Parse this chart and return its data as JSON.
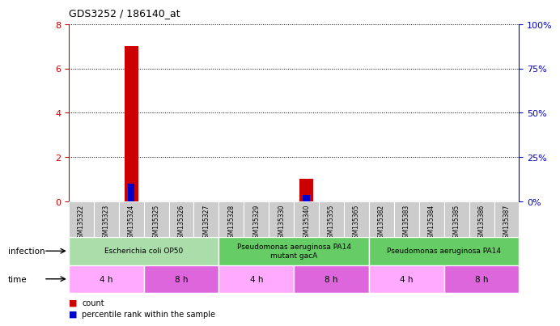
{
  "title": "GDS3252 / 186140_at",
  "samples": [
    "GSM135322",
    "GSM135323",
    "GSM135324",
    "GSM135325",
    "GSM135326",
    "GSM135327",
    "GSM135328",
    "GSM135329",
    "GSM135330",
    "GSM135340",
    "GSM135355",
    "GSM135365",
    "GSM135382",
    "GSM135383",
    "GSM135384",
    "GSM135385",
    "GSM135386",
    "GSM135387"
  ],
  "count_values": [
    0,
    0,
    7,
    0,
    0,
    0,
    0,
    0,
    0,
    1,
    0,
    0,
    0,
    0,
    0,
    0,
    0,
    0
  ],
  "percentile_values": [
    0,
    0,
    10,
    0,
    0,
    0,
    0,
    0,
    0,
    3.5,
    0,
    0,
    0,
    0,
    0,
    0,
    0,
    0
  ],
  "ylim_left": [
    0,
    8
  ],
  "ylim_right": [
    0,
    100
  ],
  "yticks_left": [
    0,
    2,
    4,
    6,
    8
  ],
  "yticks_right": [
    0,
    25,
    50,
    75,
    100
  ],
  "infection_groups": [
    {
      "label": "Escherichia coli OP50",
      "start": 0,
      "end": 6,
      "color": "#aaddaa"
    },
    {
      "label": "Pseudomonas aeruginosa PA14\nmutant gacA",
      "start": 6,
      "end": 12,
      "color": "#66cc66"
    },
    {
      "label": "Pseudomonas aeruginosa PA14",
      "start": 12,
      "end": 18,
      "color": "#66cc66"
    }
  ],
  "time_groups": [
    {
      "label": "4 h",
      "start": 0,
      "end": 3,
      "color": "#ffaaff"
    },
    {
      "label": "8 h",
      "start": 3,
      "end": 6,
      "color": "#dd66dd"
    },
    {
      "label": "4 h",
      "start": 6,
      "end": 9,
      "color": "#ffaaff"
    },
    {
      "label": "8 h",
      "start": 9,
      "end": 12,
      "color": "#dd66dd"
    },
    {
      "label": "4 h",
      "start": 12,
      "end": 15,
      "color": "#ffaaff"
    },
    {
      "label": "8 h",
      "start": 15,
      "end": 18,
      "color": "#dd66dd"
    }
  ],
  "bar_width": 0.55,
  "count_color": "#cc0000",
  "percentile_color": "#0000cc",
  "grid_color": "#000000",
  "bg_color": "#ffffff",
  "sample_bg_color": "#cccccc",
  "left_axis_color": "#cc0000",
  "right_axis_color": "#0000cc"
}
